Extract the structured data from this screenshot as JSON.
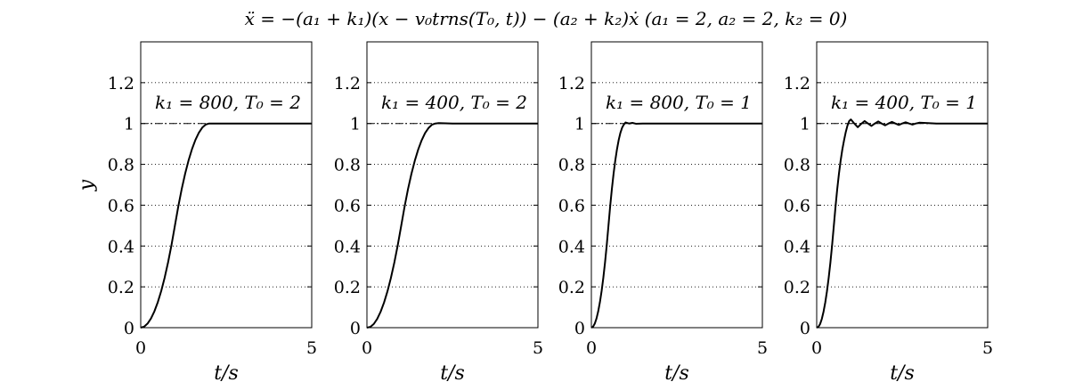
{
  "figure": {
    "title": "ẍ = −(a₁ + k₁)(x − v₀trns(T₀, t)) − (a₂ + k₂)ẋ    (a₁ = 2, a₂ = 2, k₂ = 0)"
  },
  "chart_data": [
    {
      "type": "line",
      "annotation": "k₁ = 800, T₀ = 2",
      "xlabel": "t/s",
      "ylabel": "y",
      "xlim": [
        0,
        5
      ],
      "ylim": [
        0,
        1.4
      ],
      "xticks": [
        0,
        5
      ],
      "yticks": [
        0,
        0.2,
        0.4,
        0.6,
        0.8,
        1,
        1.2
      ],
      "grid": "horizontal dotted",
      "reference_line": 1,
      "series": [
        {
          "x": [
            0,
            0.1,
            0.2,
            0.3,
            0.4,
            0.5,
            0.6,
            0.7,
            0.8,
            0.9,
            1.0,
            1.1,
            1.2,
            1.3,
            1.4,
            1.5,
            1.6,
            1.7,
            1.8,
            1.9,
            2.0,
            2.5,
            3.0,
            3.5,
            4.0,
            4.5,
            5.0
          ],
          "y": [
            0,
            0.005,
            0.02,
            0.045,
            0.08,
            0.125,
            0.18,
            0.245,
            0.32,
            0.405,
            0.5,
            0.595,
            0.68,
            0.755,
            0.82,
            0.875,
            0.92,
            0.955,
            0.98,
            0.995,
            1.0,
            1.0,
            1.0,
            1.0,
            1.0,
            1.0,
            1.0
          ]
        }
      ]
    },
    {
      "type": "line",
      "annotation": "k₁ = 400, T₀ = 2",
      "xlabel": "t/s",
      "ylabel": "",
      "xlim": [
        0,
        5
      ],
      "ylim": [
        0,
        1.4
      ],
      "xticks": [
        0,
        5
      ],
      "yticks": [
        0,
        0.2,
        0.4,
        0.6,
        0.8,
        1,
        1.2
      ],
      "grid": "horizontal dotted",
      "reference_line": 1,
      "series": [
        {
          "x": [
            0,
            0.1,
            0.2,
            0.3,
            0.4,
            0.5,
            0.6,
            0.7,
            0.8,
            0.9,
            1.0,
            1.1,
            1.2,
            1.3,
            1.4,
            1.5,
            1.6,
            1.7,
            1.8,
            1.9,
            2.0,
            2.1,
            2.5,
            3.0,
            3.5,
            4.0,
            4.5,
            5.0
          ],
          "y": [
            0,
            0.004,
            0.018,
            0.043,
            0.078,
            0.123,
            0.178,
            0.243,
            0.318,
            0.403,
            0.497,
            0.592,
            0.678,
            0.753,
            0.818,
            0.873,
            0.918,
            0.953,
            0.978,
            0.994,
            1.0,
            1.002,
            1.0,
            1.0,
            1.0,
            1.0,
            1.0,
            1.0
          ]
        }
      ]
    },
    {
      "type": "line",
      "annotation": "k₁ = 800, T₀ = 1",
      "xlabel": "t/s",
      "ylabel": "",
      "xlim": [
        0,
        5
      ],
      "ylim": [
        0,
        1.4
      ],
      "xticks": [
        0,
        5
      ],
      "yticks": [
        0,
        0.2,
        0.4,
        0.6,
        0.8,
        1,
        1.2
      ],
      "grid": "horizontal dotted",
      "reference_line": 1,
      "series": [
        {
          "x": [
            0,
            0.05,
            0.1,
            0.15,
            0.2,
            0.25,
            0.3,
            0.35,
            0.4,
            0.45,
            0.5,
            0.55,
            0.6,
            0.65,
            0.7,
            0.75,
            0.8,
            0.85,
            0.9,
            0.95,
            1.0,
            1.1,
            1.2,
            1.3,
            1.5,
            2.0,
            3.0,
            4.0,
            5.0
          ],
          "y": [
            0,
            0.005,
            0.02,
            0.045,
            0.08,
            0.125,
            0.18,
            0.245,
            0.32,
            0.405,
            0.5,
            0.595,
            0.68,
            0.755,
            0.82,
            0.875,
            0.92,
            0.955,
            0.98,
            0.995,
            1.005,
            1.0,
            1.003,
            0.999,
            1.0,
            1.0,
            1.0,
            1.0,
            1.0
          ]
        }
      ]
    },
    {
      "type": "line",
      "annotation": "k₁ = 400, T₀ = 1",
      "xlabel": "t/s",
      "ylabel": "",
      "xlim": [
        0,
        5
      ],
      "ylim": [
        0,
        1.4
      ],
      "xticks": [
        0,
        5
      ],
      "yticks": [
        0,
        0.2,
        0.4,
        0.6,
        0.8,
        1,
        1.2
      ],
      "grid": "horizontal dotted",
      "reference_line": 1,
      "series": [
        {
          "x": [
            0,
            0.05,
            0.1,
            0.15,
            0.2,
            0.25,
            0.3,
            0.35,
            0.4,
            0.45,
            0.5,
            0.55,
            0.6,
            0.65,
            0.7,
            0.75,
            0.8,
            0.85,
            0.9,
            0.95,
            1.0,
            1.1,
            1.2,
            1.3,
            1.4,
            1.5,
            1.6,
            1.7,
            1.8,
            1.9,
            2.0,
            2.1,
            2.2,
            2.3,
            2.4,
            2.5,
            2.6,
            2.7,
            2.8,
            2.9,
            3.0,
            3.5,
            4.0,
            4.5,
            5.0
          ],
          "y": [
            0,
            0.004,
            0.018,
            0.043,
            0.078,
            0.123,
            0.178,
            0.243,
            0.318,
            0.403,
            0.497,
            0.592,
            0.678,
            0.753,
            0.818,
            0.873,
            0.918,
            0.958,
            0.99,
            1.012,
            1.02,
            1.0,
            0.982,
            0.998,
            1.012,
            1.0,
            0.988,
            1.0,
            1.01,
            1.0,
            0.991,
            1.0,
            1.008,
            1.0,
            0.993,
            1.0,
            1.006,
            1.0,
            0.995,
            1.0,
            1.004,
            1.0,
            1.0,
            1.0,
            1.0
          ]
        }
      ]
    }
  ]
}
